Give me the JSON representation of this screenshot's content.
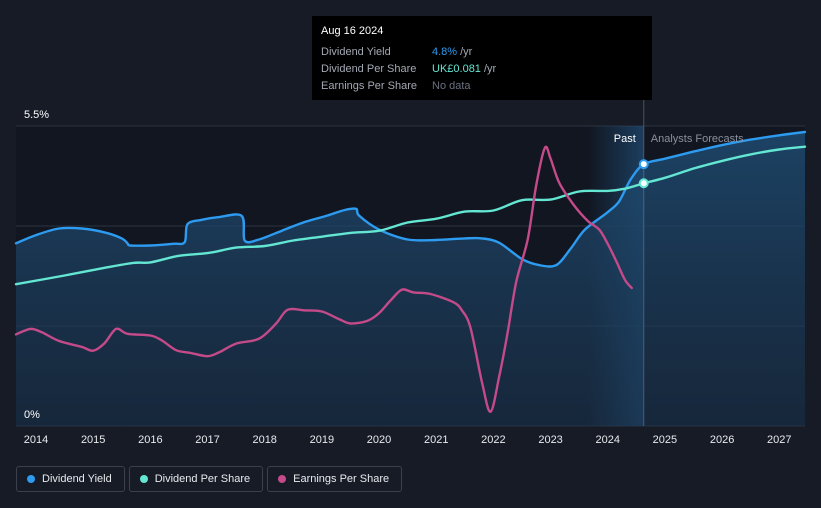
{
  "colors": {
    "dividend_yield": "#2d9bf0",
    "dividend_per_share": "#63e6d2",
    "earnings_per_share": "#c44a8a"
  },
  "tooltip": {
    "date": "Aug 16 2024",
    "rows": [
      {
        "label": "Dividend Yield",
        "value": "4.8%",
        "unit": "/yr"
      },
      {
        "label": "Dividend Per Share",
        "value": "UK£0.081",
        "unit": "/yr"
      },
      {
        "label": "Earnings Per Share",
        "value": "No data",
        "unit": ""
      }
    ]
  },
  "legend": {
    "items": [
      {
        "label": "Dividend Yield"
      },
      {
        "label": "Dividend Per Share"
      },
      {
        "label": "Earnings Per Share"
      }
    ]
  },
  "chart_data": {
    "type": "line",
    "y_top_label": "5.5%",
    "y_bottom_label": "0%",
    "ylim": [
      0,
      5.5
    ],
    "xlim": [
      2013.65,
      2027.45
    ],
    "x_ticks": [
      "2014",
      "2015",
      "2016",
      "2017",
      "2018",
      "2019",
      "2020",
      "2021",
      "2022",
      "2023",
      "2024",
      "2025",
      "2026",
      "2027"
    ],
    "past_label": "Past",
    "forecast_label": "Analysts Forecasts",
    "past_region_start": 2023.65,
    "current_date": 2024.63,
    "series": [
      {
        "name": "Dividend Yield",
        "key": "dividend_yield",
        "area": true,
        "marker_at": [
          2024.63,
          4.8
        ],
        "points": [
          [
            2013.65,
            3.35
          ],
          [
            2014.0,
            3.5
          ],
          [
            2014.4,
            3.62
          ],
          [
            2014.8,
            3.62
          ],
          [
            2015.2,
            3.55
          ],
          [
            2015.5,
            3.44
          ],
          [
            2015.6,
            3.35
          ],
          [
            2015.65,
            3.31
          ],
          [
            2016.0,
            3.31
          ],
          [
            2016.4,
            3.34
          ],
          [
            2016.6,
            3.37
          ],
          [
            2016.65,
            3.7
          ],
          [
            2016.9,
            3.78
          ],
          [
            2017.2,
            3.83
          ],
          [
            2017.6,
            3.85
          ],
          [
            2017.65,
            3.4
          ],
          [
            2017.9,
            3.42
          ],
          [
            2018.3,
            3.58
          ],
          [
            2018.7,
            3.74
          ],
          [
            2019.1,
            3.86
          ],
          [
            2019.4,
            3.96
          ],
          [
            2019.6,
            3.98
          ],
          [
            2019.65,
            3.86
          ],
          [
            2020.0,
            3.6
          ],
          [
            2020.5,
            3.42
          ],
          [
            2021.0,
            3.41
          ],
          [
            2021.5,
            3.44
          ],
          [
            2021.8,
            3.44
          ],
          [
            2022.1,
            3.36
          ],
          [
            2022.5,
            3.06
          ],
          [
            2022.8,
            2.95
          ],
          [
            2023.1,
            2.95
          ],
          [
            2023.35,
            3.25
          ],
          [
            2023.6,
            3.6
          ],
          [
            2024.0,
            3.92
          ],
          [
            2024.2,
            4.12
          ],
          [
            2024.4,
            4.52
          ],
          [
            2024.63,
            4.8
          ],
          [
            2025.0,
            4.9
          ],
          [
            2025.5,
            5.03
          ],
          [
            2026.0,
            5.15
          ],
          [
            2026.5,
            5.25
          ],
          [
            2027.0,
            5.33
          ],
          [
            2027.45,
            5.39
          ]
        ]
      },
      {
        "name": "Dividend Per Share",
        "key": "dividend_per_share",
        "area": false,
        "marker_at": [
          2024.63,
          4.45
        ],
        "points": [
          [
            2013.65,
            2.6
          ],
          [
            2014.5,
            2.76
          ],
          [
            2015.2,
            2.9
          ],
          [
            2015.7,
            2.99
          ],
          [
            2016.0,
            3.0
          ],
          [
            2016.5,
            3.12
          ],
          [
            2017.0,
            3.17
          ],
          [
            2017.5,
            3.27
          ],
          [
            2018.0,
            3.3
          ],
          [
            2018.5,
            3.4
          ],
          [
            2019.0,
            3.47
          ],
          [
            2019.5,
            3.54
          ],
          [
            2020.0,
            3.58
          ],
          [
            2020.5,
            3.73
          ],
          [
            2021.0,
            3.8
          ],
          [
            2021.5,
            3.93
          ],
          [
            2022.0,
            3.95
          ],
          [
            2022.5,
            4.14
          ],
          [
            2023.0,
            4.15
          ],
          [
            2023.5,
            4.3
          ],
          [
            2024.0,
            4.31
          ],
          [
            2024.3,
            4.35
          ],
          [
            2024.63,
            4.45
          ],
          [
            2025.0,
            4.55
          ],
          [
            2025.5,
            4.72
          ],
          [
            2026.0,
            4.86
          ],
          [
            2026.5,
            4.98
          ],
          [
            2027.0,
            5.07
          ],
          [
            2027.45,
            5.12
          ]
        ]
      },
      {
        "name": "Earnings Per Share",
        "key": "earnings_per_share",
        "area": false,
        "points": [
          [
            2013.65,
            1.68
          ],
          [
            2013.9,
            1.78
          ],
          [
            2014.1,
            1.72
          ],
          [
            2014.4,
            1.56
          ],
          [
            2014.8,
            1.45
          ],
          [
            2015.0,
            1.38
          ],
          [
            2015.2,
            1.52
          ],
          [
            2015.4,
            1.78
          ],
          [
            2015.6,
            1.69
          ],
          [
            2016.0,
            1.66
          ],
          [
            2016.2,
            1.57
          ],
          [
            2016.45,
            1.39
          ],
          [
            2016.7,
            1.34
          ],
          [
            2017.0,
            1.28
          ],
          [
            2017.2,
            1.35
          ],
          [
            2017.5,
            1.51
          ],
          [
            2017.9,
            1.6
          ],
          [
            2018.2,
            1.88
          ],
          [
            2018.4,
            2.13
          ],
          [
            2018.7,
            2.12
          ],
          [
            2019.0,
            2.1
          ],
          [
            2019.3,
            1.96
          ],
          [
            2019.5,
            1.88
          ],
          [
            2019.8,
            1.93
          ],
          [
            2020.0,
            2.07
          ],
          [
            2020.2,
            2.3
          ],
          [
            2020.4,
            2.5
          ],
          [
            2020.6,
            2.45
          ],
          [
            2020.9,
            2.42
          ],
          [
            2021.3,
            2.27
          ],
          [
            2021.45,
            2.12
          ],
          [
            2021.6,
            1.8
          ],
          [
            2021.8,
            0.8
          ],
          [
            2021.95,
            0.26
          ],
          [
            2022.1,
            0.9
          ],
          [
            2022.25,
            1.72
          ],
          [
            2022.4,
            2.65
          ],
          [
            2022.6,
            3.42
          ],
          [
            2022.75,
            4.42
          ],
          [
            2022.9,
            5.1
          ],
          [
            2023.0,
            4.9
          ],
          [
            2023.15,
            4.46
          ],
          [
            2023.4,
            4.06
          ],
          [
            2023.65,
            3.76
          ],
          [
            2023.85,
            3.6
          ],
          [
            2024.0,
            3.34
          ],
          [
            2024.15,
            3.02
          ],
          [
            2024.3,
            2.68
          ],
          [
            2024.42,
            2.53
          ]
        ]
      }
    ]
  }
}
